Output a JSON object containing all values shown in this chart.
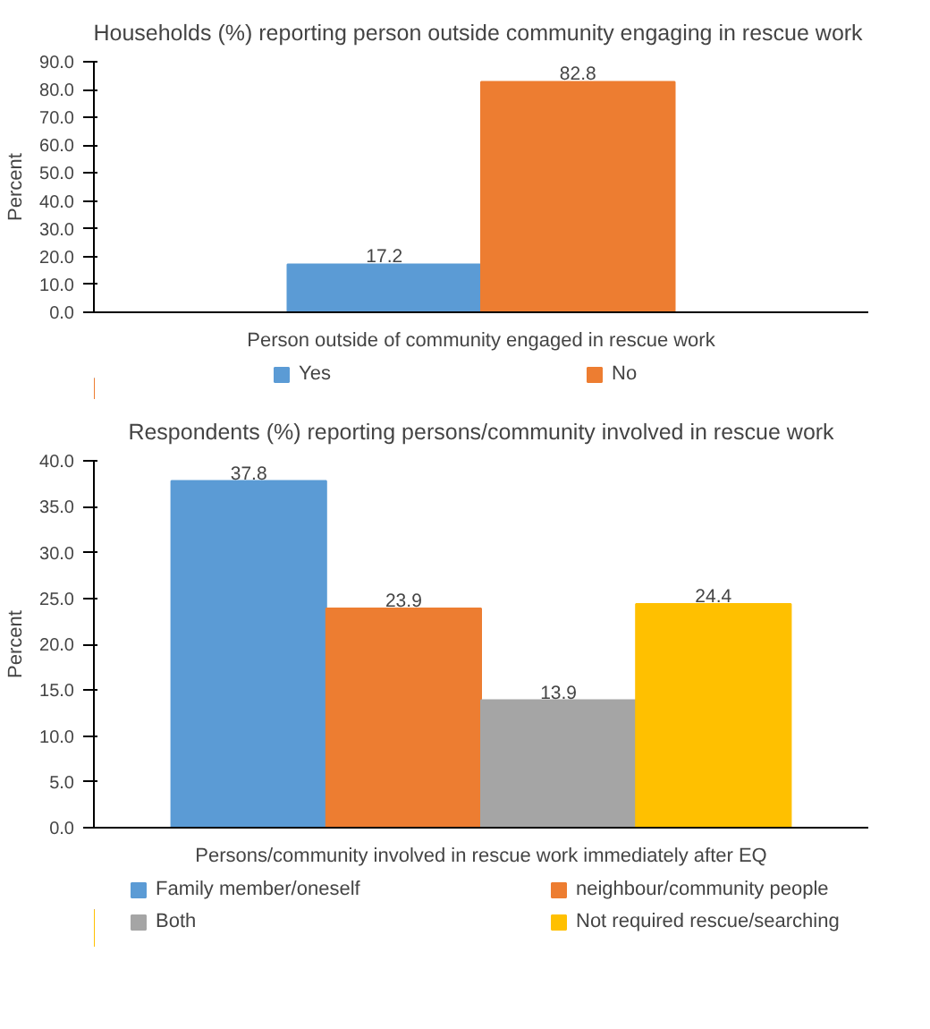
{
  "chart_data": [
    {
      "type": "bar",
      "title": "Households (%) reporting  person outside community engaging in rescue work",
      "ylabel": "Percent",
      "xlabel": "Person outside of community engaged in rescue work",
      "categories": [
        null
      ],
      "series": [
        {
          "name": "Yes",
          "color": "#5b9bd5",
          "values": [
            17.2
          ]
        },
        {
          "name": "No",
          "color": "#ed7d31",
          "values": [
            82.8
          ]
        }
      ],
      "ylim": [
        0,
        90
      ],
      "yticks": [
        {
          "value": 0,
          "label": "0.0"
        },
        {
          "value": 10,
          "label": "10.0"
        },
        {
          "value": 20,
          "label": "20.0"
        },
        {
          "value": 30,
          "label": "30.0"
        },
        {
          "value": 40,
          "label": "40.0"
        },
        {
          "value": 50,
          "label": "50.0"
        },
        {
          "value": 60,
          "label": "60.0"
        },
        {
          "value": 70,
          "label": "70.0"
        },
        {
          "value": 80,
          "label": "80.0"
        },
        {
          "value": 90,
          "label": "90.0"
        }
      ],
      "data_labels": true,
      "grid": false,
      "legend": "bottom"
    },
    {
      "type": "bar",
      "title": "Respondents (%) reporting persons/community involved in rescue work",
      "ylabel": "Percent",
      "xlabel": "Persons/community involved in rescue work immediately after EQ",
      "categories": [
        null
      ],
      "series": [
        {
          "name": "Family member/oneself",
          "color": "#5b9bd5",
          "values": [
            37.8
          ]
        },
        {
          "name": "neighbour/community people",
          "color": "#ed7d31",
          "values": [
            23.9
          ]
        },
        {
          "name": "Both",
          "color": "#a5a5a5",
          "values": [
            13.9
          ]
        },
        {
          "name": "Not required rescue/searching",
          "color": "#ffc000",
          "values": [
            24.4
          ]
        }
      ],
      "ylim": [
        0,
        40
      ],
      "yticks": [
        {
          "value": 0,
          "label": "0.0"
        },
        {
          "value": 5,
          "label": "5.0"
        },
        {
          "value": 10,
          "label": "10.0"
        },
        {
          "value": 15,
          "label": "15.0"
        },
        {
          "value": 20,
          "label": "20.0"
        },
        {
          "value": 25,
          "label": "25.0"
        },
        {
          "value": 30,
          "label": "30.0"
        },
        {
          "value": 35,
          "label": "35.0"
        },
        {
          "value": 40,
          "label": "40.0"
        }
      ],
      "data_labels": true,
      "grid": false,
      "legend": "bottom"
    }
  ]
}
